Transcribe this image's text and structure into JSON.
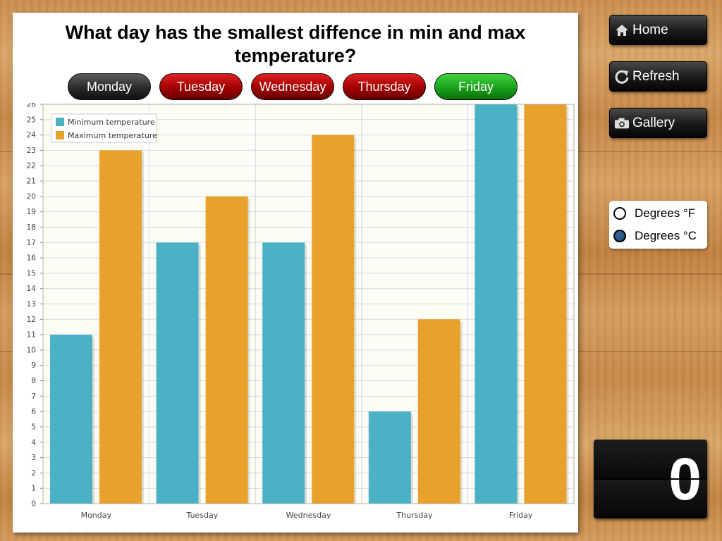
{
  "question": "What day has the smallest diffence in min and max temperature?",
  "day_buttons": [
    {
      "label": "Monday",
      "state": "neutral"
    },
    {
      "label": "Tuesday",
      "state": "wrong"
    },
    {
      "label": "Wednesday",
      "state": "wrong"
    },
    {
      "label": "Thursday",
      "state": "wrong"
    },
    {
      "label": "Friday",
      "state": "correct"
    }
  ],
  "side_buttons": {
    "home": {
      "label": "Home",
      "icon": "home-icon"
    },
    "refresh": {
      "label": "Refresh",
      "icon": "refresh-icon"
    },
    "gallery": {
      "label": "Gallery",
      "icon": "camera-icon"
    }
  },
  "units": {
    "fahrenheit": "Degrees °F",
    "celsius": "Degrees °C",
    "selected": "celsius"
  },
  "score": "0",
  "colors": {
    "min": "#4ab1c7",
    "max": "#e8a22b",
    "plot_bg": "#fdfcf5",
    "grid": "#d8d8d8"
  },
  "chart_data": {
    "type": "bar",
    "categories": [
      "Monday",
      "Tuesday",
      "Wednesday",
      "Thursday",
      "Friday"
    ],
    "series": [
      {
        "name": "Minimum temperature",
        "values": [
          11,
          17,
          17,
          6,
          26
        ]
      },
      {
        "name": "Maximum temperature",
        "values": [
          23,
          20,
          24,
          12,
          26
        ]
      }
    ],
    "ylim": [
      0,
      26
    ],
    "yticks": [
      0,
      1,
      2,
      3,
      4,
      5,
      6,
      7,
      8,
      9,
      10,
      11,
      12,
      13,
      14,
      15,
      16,
      17,
      18,
      19,
      20,
      21,
      22,
      23,
      24,
      25,
      26
    ],
    "grid": true,
    "legend": "top-left"
  }
}
